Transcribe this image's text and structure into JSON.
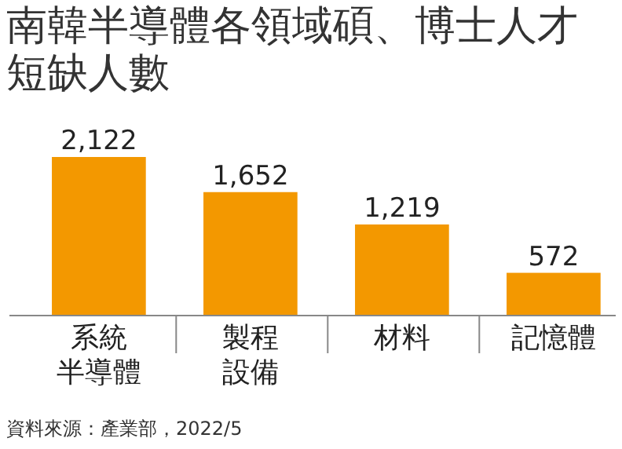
{
  "chart_data": {
    "type": "bar",
    "title": "南韓半導體各領域碩、博士人才短缺人數",
    "categories": [
      "系統半導體",
      "製程設備",
      "材料",
      "記憶體"
    ],
    "values": [
      2122,
      1652,
      1219,
      572
    ],
    "color": "#f39800",
    "value_labels": [
      "2,122",
      "1,652",
      "1,219",
      "572"
    ],
    "annotations": [
      "資料來源：產業部，2022/5"
    ]
  }
}
